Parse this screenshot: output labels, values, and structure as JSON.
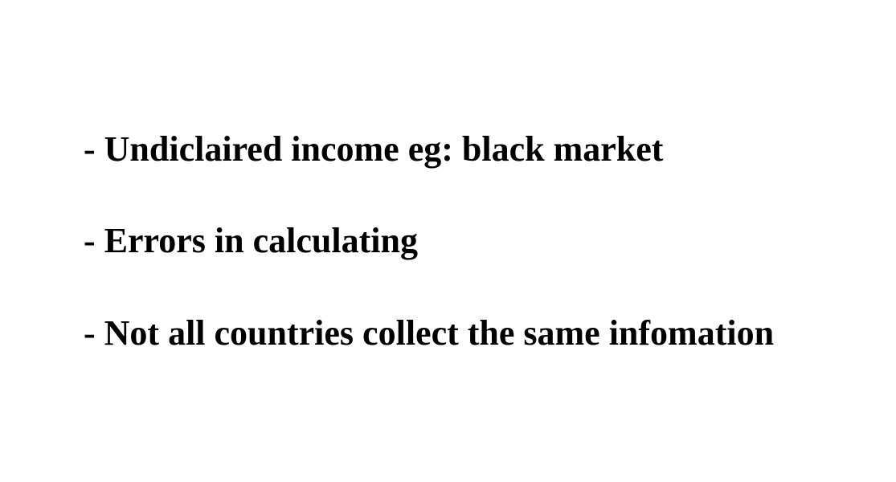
{
  "slide": {
    "bullets": [
      "- Undiclaired income eg: black market",
      "- Errors in calculating",
      "- Not all countries collect the same infomation"
    ]
  },
  "colors": {
    "background": "#ffffff",
    "text": "#000000"
  }
}
